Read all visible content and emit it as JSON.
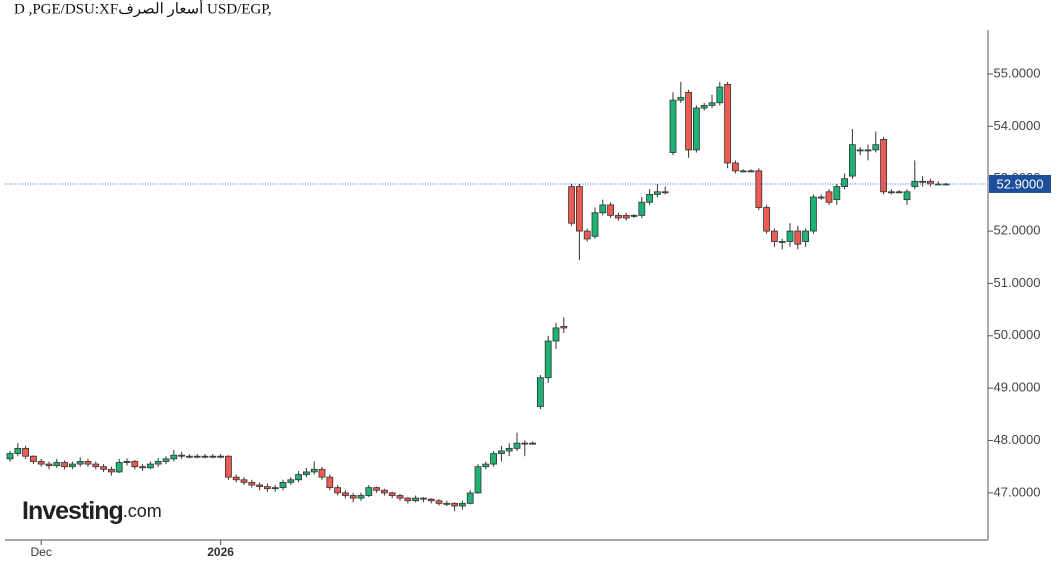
{
  "chart_data": {
    "type": "candlestick",
    "title": "D ,PGE/DSU:XFأسعار الصرف USD/EGP,",
    "watermark": "Investing",
    "watermark_suffix": ".com",
    "up_color": "#1fb272",
    "down_color": "#ec5b52",
    "ylim": [
      46.1,
      55.84
    ],
    "yticks": [
      {
        "value": 47,
        "label": "47.0000"
      },
      {
        "value": 48,
        "label": "48.0000"
      },
      {
        "value": 49,
        "label": "49.0000"
      },
      {
        "value": 50,
        "label": "50.0000"
      },
      {
        "value": 51,
        "label": "51.0000"
      },
      {
        "value": 52,
        "label": "52.0000"
      },
      {
        "value": 53,
        "label": "53.0000"
      },
      {
        "value": 54,
        "label": "54.0000"
      },
      {
        "value": 55,
        "label": "55.0000"
      }
    ],
    "current_price": {
      "value": 52.9,
      "label": "52.9000"
    },
    "categories": [
      null,
      null,
      null,
      null,
      "Dec",
      null,
      null,
      null,
      null,
      null,
      null,
      null,
      null,
      null,
      null,
      null,
      null,
      null,
      null,
      null,
      null,
      null,
      null,
      null,
      null,
      null,
      null,
      "2026",
      null,
      null,
      null,
      null,
      null,
      null,
      null,
      null,
      null,
      null,
      null,
      null,
      null,
      null,
      null,
      null,
      null,
      null,
      null,
      null,
      null,
      null,
      null,
      null,
      null,
      null,
      null,
      null,
      null,
      null,
      null,
      null,
      null,
      null,
      null,
      null,
      null,
      null,
      null,
      null,
      null,
      null,
      null,
      null,
      null,
      null,
      null,
      null,
      null,
      null,
      null,
      null,
      null,
      null,
      null,
      null,
      null,
      null,
      null,
      null,
      null,
      null,
      null,
      null,
      null,
      null,
      null,
      null,
      null,
      null,
      null,
      null,
      null,
      null,
      null,
      null,
      null,
      null,
      null,
      null,
      null,
      null,
      null,
      null,
      null,
      null,
      null,
      null,
      null,
      null,
      null,
      null,
      null,
      null,
      null
    ],
    "ohlc": [
      [
        47.65,
        47.8,
        47.6,
        47.75
      ],
      [
        47.75,
        47.95,
        47.7,
        47.85
      ],
      [
        47.85,
        47.9,
        47.65,
        47.7
      ],
      [
        47.7,
        47.72,
        47.55,
        47.6
      ],
      [
        47.6,
        47.65,
        47.5,
        47.55
      ],
      [
        47.55,
        47.6,
        47.45,
        47.52
      ],
      [
        47.52,
        47.65,
        47.48,
        47.58
      ],
      [
        47.58,
        47.62,
        47.45,
        47.5
      ],
      [
        47.5,
        47.6,
        47.45,
        47.55
      ],
      [
        47.55,
        47.68,
        47.5,
        47.6
      ],
      [
        47.6,
        47.65,
        47.5,
        47.55
      ],
      [
        47.55,
        47.6,
        47.45,
        47.5
      ],
      [
        47.5,
        47.55,
        47.4,
        47.45
      ],
      [
        47.45,
        47.5,
        47.33,
        47.4
      ],
      [
        47.4,
        47.65,
        47.38,
        47.58
      ],
      [
        47.58,
        47.66,
        47.52,
        47.6
      ],
      [
        47.6,
        47.63,
        47.45,
        47.5
      ],
      [
        47.5,
        47.55,
        47.42,
        47.48
      ],
      [
        47.48,
        47.6,
        47.45,
        47.55
      ],
      [
        47.55,
        47.66,
        47.5,
        47.6
      ],
      [
        47.6,
        47.7,
        47.55,
        47.65
      ],
      [
        47.65,
        47.82,
        47.6,
        47.72
      ],
      [
        47.72,
        47.78,
        47.65,
        47.7
      ],
      [
        47.7,
        47.74,
        47.66,
        47.7
      ],
      [
        47.7,
        47.74,
        47.66,
        47.7
      ],
      [
        47.7,
        47.74,
        47.66,
        47.7
      ],
      [
        47.7,
        47.74,
        47.66,
        47.7
      ],
      [
        47.7,
        47.74,
        47.66,
        47.7
      ],
      [
        47.7,
        47.72,
        47.25,
        47.3
      ],
      [
        47.3,
        47.35,
        47.2,
        47.25
      ],
      [
        47.25,
        47.3,
        47.15,
        47.2
      ],
      [
        47.2,
        47.25,
        47.1,
        47.15
      ],
      [
        47.15,
        47.2,
        47.05,
        47.12
      ],
      [
        47.12,
        47.18,
        47.02,
        47.08
      ],
      [
        47.08,
        47.15,
        47.02,
        47.1
      ],
      [
        47.1,
        47.25,
        47.05,
        47.2
      ],
      [
        47.2,
        47.3,
        47.15,
        47.25
      ],
      [
        47.25,
        47.42,
        47.2,
        47.35
      ],
      [
        47.35,
        47.48,
        47.3,
        47.4
      ],
      [
        47.4,
        47.6,
        47.35,
        47.45
      ],
      [
        47.45,
        47.5,
        47.25,
        47.3
      ],
      [
        47.3,
        47.35,
        47.05,
        47.1
      ],
      [
        47.1,
        47.15,
        46.95,
        47.0
      ],
      [
        47.0,
        47.05,
        46.9,
        46.95
      ],
      [
        46.95,
        47.0,
        46.82,
        46.9
      ],
      [
        46.9,
        47.0,
        46.85,
        46.95
      ],
      [
        46.95,
        47.15,
        46.92,
        47.1
      ],
      [
        47.1,
        47.12,
        47.0,
        47.05
      ],
      [
        47.05,
        47.08,
        46.95,
        47.0
      ],
      [
        47.0,
        47.02,
        46.9,
        46.95
      ],
      [
        46.95,
        46.98,
        46.85,
        46.9
      ],
      [
        46.9,
        46.92,
        46.8,
        46.85
      ],
      [
        46.85,
        46.95,
        46.82,
        46.9
      ],
      [
        46.9,
        46.92,
        46.82,
        46.88
      ],
      [
        46.88,
        46.9,
        46.8,
        46.85
      ],
      [
        46.85,
        46.88,
        46.76,
        46.8
      ],
      [
        46.8,
        46.85,
        46.75,
        46.8
      ],
      [
        46.8,
        46.82,
        46.65,
        46.75
      ],
      [
        46.75,
        46.85,
        46.68,
        46.8
      ],
      [
        46.8,
        47.05,
        46.78,
        47.0
      ],
      [
        47.0,
        47.55,
        46.98,
        47.5
      ],
      [
        47.5,
        47.6,
        47.45,
        47.55
      ],
      [
        47.55,
        47.8,
        47.5,
        47.75
      ],
      [
        47.75,
        47.9,
        47.6,
        47.8
      ],
      [
        47.8,
        47.95,
        47.7,
        47.85
      ],
      [
        47.85,
        48.15,
        47.8,
        47.95
      ],
      [
        47.95,
        48.0,
        47.7,
        47.95
      ],
      [
        47.95,
        47.98,
        47.92,
        47.95
      ],
      [
        48.65,
        49.25,
        48.6,
        49.2
      ],
      [
        49.2,
        50.0,
        49.1,
        49.9
      ],
      [
        49.9,
        50.25,
        49.75,
        50.15
      ],
      [
        50.18,
        50.35,
        50.05,
        50.15
      ],
      [
        52.85,
        52.9,
        52.1,
        52.15
      ],
      [
        52.85,
        52.9,
        51.45,
        52.0
      ],
      [
        52.0,
        52.05,
        51.8,
        51.85
      ],
      [
        51.9,
        52.45,
        51.85,
        52.35
      ],
      [
        52.35,
        52.6,
        52.3,
        52.5
      ],
      [
        52.5,
        52.55,
        52.25,
        52.3
      ],
      [
        52.3,
        52.35,
        52.2,
        52.25
      ],
      [
        52.3,
        52.35,
        52.2,
        52.25
      ],
      [
        52.28,
        52.32,
        52.25,
        52.3
      ],
      [
        52.3,
        52.65,
        52.25,
        52.55
      ],
      [
        52.55,
        52.8,
        52.5,
        52.7
      ],
      [
        52.7,
        52.9,
        52.65,
        52.75
      ],
      [
        52.75,
        52.85,
        52.7,
        52.75
      ],
      [
        53.5,
        54.65,
        53.45,
        54.5
      ],
      [
        54.5,
        54.85,
        54.45,
        54.55
      ],
      [
        54.65,
        54.7,
        53.4,
        53.55
      ],
      [
        53.55,
        54.4,
        53.5,
        54.35
      ],
      [
        54.35,
        54.45,
        54.3,
        54.4
      ],
      [
        54.4,
        54.6,
        54.35,
        54.45
      ],
      [
        54.45,
        54.85,
        54.4,
        54.75
      ],
      [
        54.8,
        54.85,
        53.2,
        53.3
      ],
      [
        53.3,
        53.35,
        53.1,
        53.15
      ],
      [
        53.15,
        53.18,
        53.12,
        53.15
      ],
      [
        53.15,
        53.18,
        53.12,
        53.15
      ],
      [
        53.15,
        53.2,
        52.4,
        52.45
      ],
      [
        52.45,
        52.5,
        51.95,
        52.0
      ],
      [
        52.0,
        52.05,
        51.7,
        51.8
      ],
      [
        51.8,
        51.85,
        51.65,
        51.8
      ],
      [
        51.8,
        52.15,
        51.7,
        52.0
      ],
      [
        52.0,
        52.1,
        51.65,
        51.75
      ],
      [
        51.8,
        52.05,
        51.7,
        52.0
      ],
      [
        52.0,
        52.7,
        51.95,
        52.65
      ],
      [
        52.65,
        52.7,
        52.6,
        52.65
      ],
      [
        52.75,
        52.8,
        52.5,
        52.55
      ],
      [
        52.6,
        52.9,
        52.5,
        52.85
      ],
      [
        52.85,
        53.1,
        52.8,
        53.0
      ],
      [
        53.05,
        53.95,
        53.0,
        53.65
      ],
      [
        53.55,
        53.6,
        53.45,
        53.55
      ],
      [
        53.55,
        53.65,
        53.35,
        53.55
      ],
      [
        53.55,
        53.9,
        53.5,
        53.65
      ],
      [
        53.75,
        53.8,
        52.7,
        52.75
      ],
      [
        52.75,
        52.8,
        52.7,
        52.75
      ],
      [
        52.75,
        52.78,
        52.72,
        52.75
      ],
      [
        52.6,
        52.8,
        52.5,
        52.75
      ],
      [
        52.85,
        53.35,
        52.8,
        52.95
      ],
      [
        52.95,
        53.05,
        52.85,
        52.95
      ],
      [
        52.95,
        53.0,
        52.85,
        52.9
      ],
      [
        52.9,
        52.95,
        52.88,
        52.9
      ],
      [
        52.9,
        52.92,
        52.88,
        52.9
      ]
    ]
  }
}
